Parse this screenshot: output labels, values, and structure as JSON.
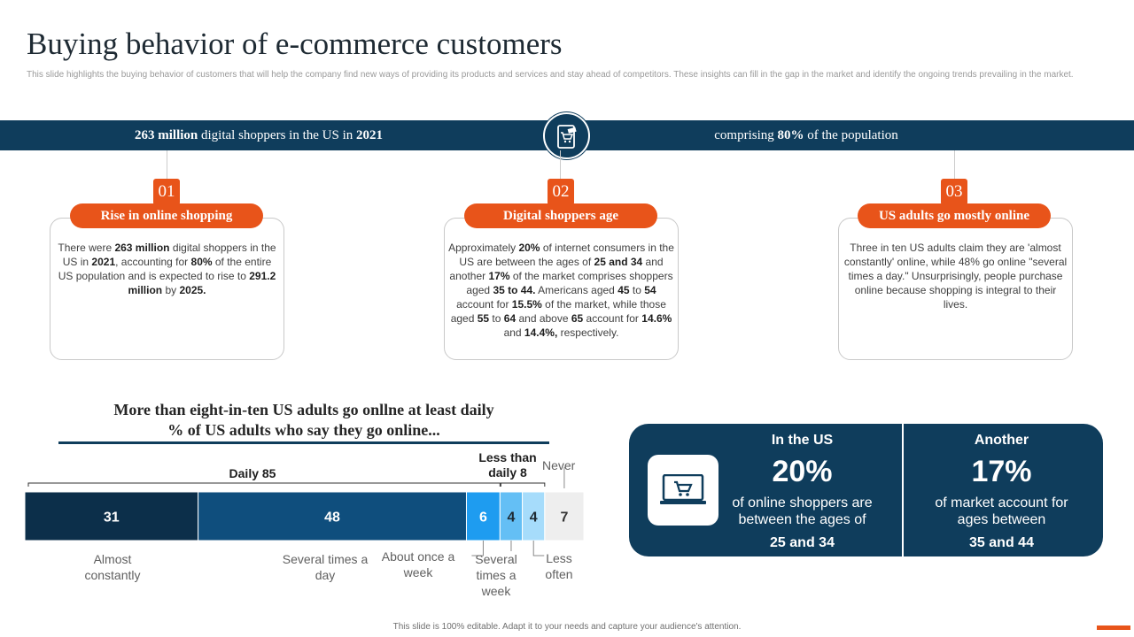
{
  "header": {
    "title": "Buying behavior of e-commerce customers",
    "subtitle": "This slide highlights the buying behavior of customers that will help the company find new ways of providing its products and services and stay ahead of competitors. These insights can fill in the gap in the market and identify the ongoing trends prevailing in the market."
  },
  "banner": {
    "left_bold": "263 million",
    "left_mid": " digital shoppers in the US in ",
    "left_bold2": "2021",
    "right_pre": "comprising ",
    "right_bold": "80%",
    "right_post": " of the population",
    "icon": "shopping-cart-icon"
  },
  "cards": [
    {
      "number": "01",
      "title": "Rise in online shopping",
      "parts": [
        "There were ",
        "263 million",
        " digital shoppers in the US in ",
        "2021",
        ", accounting for ",
        "80%",
        " of the entire US population and is expected to rise to ",
        "291.2 million",
        " by ",
        "2025."
      ]
    },
    {
      "number": "02",
      "title": "Digital shoppers age",
      "parts": [
        "Approximately ",
        "20%",
        " of internet consumers in the US are between the ages of ",
        "25 and 34",
        " and another ",
        "17%",
        " of the market comprises shoppers aged ",
        "35 to 44.",
        " Americans aged ",
        "45",
        " to ",
        "54",
        " account for ",
        "15.5%",
        " of the market, while those aged ",
        "55",
        " to ",
        "64",
        " and above ",
        "65",
        " account for ",
        "14.6%",
        " and ",
        "14.4%,",
        " respectively."
      ]
    },
    {
      "number": "03",
      "title": "US adults go mostly online",
      "parts": [
        "Three in ten US adults claim they are 'almost constantly' online, while 48% go online \"several times a day.\" Unsurprisingly, people purchase online because shopping is integral to their lives."
      ]
    }
  ],
  "chart_data": {
    "type": "bar",
    "orientation": "horizontal-stacked",
    "title": "More than eight-in-ten US adults go onllne at least daily",
    "subtitle": "% of US adults who say they go online...",
    "categories": [
      "Almost constantly",
      "Several times a day",
      "About once a week",
      "Several times a week",
      "Less often",
      "Never"
    ],
    "values": [
      31,
      48,
      6,
      4,
      4,
      7
    ],
    "group_labels": [
      {
        "label": "Daily 85",
        "from": 0,
        "to": 2
      },
      {
        "label": "Less than daily 8",
        "from": 3,
        "to": 4
      }
    ],
    "annotations": {
      "daily_text": "Daily 85",
      "less_line1": "Less than",
      "less_line2": "daily 8",
      "never": "Never"
    },
    "colors": [
      "#0c2f4a",
      "#0f4e7d",
      "#1e9cf0",
      "#64bff5",
      "#a6dcfb",
      "#eeeeee"
    ]
  },
  "stats": {
    "icon": "laptop-cart-icon",
    "left": {
      "heading": "In the US",
      "value": "20%",
      "desc1": "of online shoppers are",
      "desc2": "between the ages of",
      "bold": "25 and 34"
    },
    "right": {
      "heading": "Another",
      "value": "17%",
      "desc1": "of market account for",
      "desc2": "ages between",
      "bold": "35 and 44"
    }
  },
  "footer": {
    "text": "This slide is 100% editable. Adapt it to your needs and capture your audience's attention."
  }
}
